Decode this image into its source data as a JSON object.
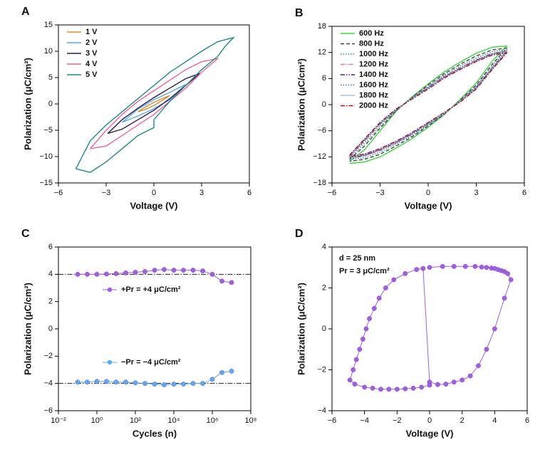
{
  "chart_data": [
    {
      "type": "line",
      "label": "A",
      "x_label": "Voltage (V)",
      "y_label": "Polarization (μC/cm²)",
      "xlim": [
        -6,
        6
      ],
      "xticks": [
        {
          "value": -6,
          "label": "−6"
        },
        {
          "value": -3,
          "label": "−3"
        },
        0,
        3,
        6
      ],
      "ylim": [
        -15,
        15
      ],
      "yticks": [
        {
          "value": -15,
          "label": "−15"
        },
        {
          "value": -10,
          "label": "−10"
        },
        {
          "value": -5,
          "label": "−5"
        },
        0,
        5,
        10,
        15
      ],
      "legend": "upper left",
      "series": [
        {
          "name": "1 V",
          "color": "#e08a2e",
          "x": [
            -1,
            -0.5,
            0,
            0.5,
            1,
            0.5,
            0,
            -0.5,
            -1
          ],
          "values": [
            -1.5,
            -0.5,
            0.3,
            1.0,
            1.6,
            0.6,
            -0.3,
            -1.0,
            -1.5
          ]
        },
        {
          "name": "2 V",
          "color": "#5aaae6",
          "x": [
            -2,
            -1,
            0,
            1,
            2,
            1,
            0,
            -1,
            -2
          ],
          "values": [
            -3.5,
            -1,
            0.8,
            2.2,
            3.7,
            0.8,
            -0.9,
            -2.3,
            -3.5
          ]
        },
        {
          "name": "3 V",
          "color": "#2d1a5c",
          "x": [
            -2.9,
            -2,
            -1,
            0,
            1,
            2,
            2.9,
            2,
            1,
            0,
            -1,
            -2,
            -2.9
          ],
          "values": [
            -5.6,
            -3,
            -0.8,
            1.2,
            3,
            4.8,
            5.8,
            3.5,
            1,
            -1.2,
            -3,
            -4.8,
            -5.6
          ]
        },
        {
          "name": "4 V",
          "color": "#f0609e",
          "x": [
            -4,
            -3,
            -2,
            -1,
            0,
            1,
            2,
            3,
            4,
            3,
            2,
            1,
            0,
            -1,
            -2,
            -3,
            -4
          ],
          "values": [
            -8.5,
            -5,
            -2,
            0.5,
            2.5,
            4.5,
            6.5,
            8,
            8.6,
            6,
            3,
            0.5,
            -2,
            -4,
            -6,
            -8,
            -8.5
          ]
        },
        {
          "name": "5 V",
          "color": "#1f8a8a",
          "x": [
            -4.9,
            -4,
            -3,
            -2,
            -1,
            0,
            1,
            2,
            3,
            4,
            5,
            4.5,
            4,
            3,
            2,
            1,
            0,
            0,
            -1,
            -2,
            -3,
            -4,
            -4.9
          ],
          "values": [
            -12.3,
            -7,
            -4,
            -1.5,
            1,
            3.5,
            6,
            8,
            10,
            11.8,
            12.6,
            11,
            9,
            6.5,
            3.5,
            0.5,
            -3,
            -4.5,
            -6,
            -8.5,
            -11,
            -13,
            -12.3
          ]
        }
      ]
    },
    {
      "type": "line",
      "label": "B",
      "x_label": "Voltage (V)",
      "y_label": "Polarization (μC/cm²)",
      "xlim": [
        -6,
        6
      ],
      "xticks": [
        {
          "value": -6,
          "label": "−6"
        },
        {
          "value": -3,
          "label": "−3"
        },
        0,
        3,
        6
      ],
      "ylim": [
        -18,
        18
      ],
      "yticks": [
        {
          "value": -18,
          "label": "−18"
        },
        {
          "value": -12,
          "label": "−12"
        },
        {
          "value": -6,
          "label": "−6"
        },
        0,
        6,
        12,
        18
      ],
      "legend": "upper left",
      "x": [
        -4.9,
        -4,
        -3,
        -2,
        -1,
        0,
        1,
        2,
        3,
        4,
        4.9,
        4,
        3,
        2,
        1,
        0,
        -1,
        -2,
        -3,
        -4,
        -4.9
      ],
      "series": [
        {
          "name": "600 Hz",
          "color": "#3fd23f",
          "dash": "solid",
          "values": [
            -13,
            -10.5,
            -6,
            -1.5,
            1.8,
            4.8,
            7.5,
            9.8,
            11.8,
            13.2,
            13.5,
            10,
            5,
            1.2,
            -2.3,
            -5.2,
            -7.8,
            -10,
            -12,
            -13.2,
            -13.5
          ]
        },
        {
          "name": "800 Hz",
          "color": "#444444",
          "dash": "dashed",
          "values": [
            -12.6,
            -9.6,
            -5.4,
            -1.4,
            1.7,
            4.5,
            7.1,
            9.3,
            11.2,
            12.6,
            13,
            9.3,
            4.5,
            1,
            -2.2,
            -4.9,
            -7.4,
            -9.5,
            -11.4,
            -12.6,
            -13
          ]
        },
        {
          "name": "1000 Hz",
          "color": "#1a9a9a",
          "dash": "dotted",
          "values": [
            -12.3,
            -9,
            -5,
            -1.3,
            1.6,
            4.2,
            6.8,
            8.9,
            10.7,
            12.2,
            12.6,
            8.9,
            4.2,
            0.9,
            -2.1,
            -4.7,
            -7.1,
            -9.1,
            -10.9,
            -12.2,
            -12.6
          ]
        },
        {
          "name": "1200 Hz",
          "color": "#f07090",
          "dash": "dashdot",
          "values": [
            -12,
            -8.5,
            -4.5,
            -1.2,
            1.5,
            4,
            6.5,
            8.5,
            10.3,
            11.8,
            12.3,
            8.5,
            4,
            0.8,
            -2,
            -4.5,
            -6.8,
            -8.8,
            -10.5,
            -11.8,
            -12.3
          ]
        },
        {
          "name": "1400 Hz",
          "color": "#4b1a8a",
          "dash": "dashdotdot",
          "values": [
            -11.9,
            -8.3,
            -4.4,
            -1.2,
            1.5,
            3.9,
            6.4,
            8.4,
            10.2,
            11.7,
            12.2,
            8.4,
            3.9,
            0.8,
            -2,
            -4.4,
            -6.7,
            -8.7,
            -10.4,
            -11.7,
            -12.2
          ]
        },
        {
          "name": "1600 Hz",
          "color": "#2a6ad0",
          "dash": "dotted",
          "values": [
            -11.8,
            -8.2,
            -4.3,
            -1.1,
            1.4,
            3.8,
            6.3,
            8.3,
            10.1,
            11.6,
            12.1,
            8.3,
            3.8,
            0.7,
            -1.9,
            -4.3,
            -6.6,
            -8.6,
            -10.3,
            -11.6,
            -12.1
          ]
        },
        {
          "name": "1800 Hz",
          "color": "#90c8ee",
          "dash": "solid",
          "values": [
            -11.7,
            -8.1,
            -4.2,
            -1.1,
            1.4,
            3.7,
            6.2,
            8.2,
            10,
            11.5,
            12,
            8.2,
            3.7,
            0.7,
            -1.9,
            -4.2,
            -6.5,
            -8.5,
            -10.2,
            -11.5,
            -12
          ]
        },
        {
          "name": "2000 Hz",
          "color": "#a01010",
          "dash": "dashdot",
          "values": [
            -11.6,
            -8,
            -4.1,
            -1,
            1.3,
            3.6,
            6.1,
            8.1,
            9.9,
            11.4,
            11.9,
            8.1,
            3.6,
            0.6,
            -1.8,
            -4.1,
            -6.4,
            -8.4,
            -10.1,
            -11.4,
            -11.9
          ]
        }
      ]
    },
    {
      "type": "line",
      "label": "C",
      "x_label": "Cycles (n)",
      "y_label": "Polarization (μC/cm²)",
      "xscale": "log",
      "xlim": [
        0.01,
        100000000
      ],
      "xticks": [
        {
          "value": 0.01,
          "label": "10⁻²"
        },
        {
          "value": 1,
          "label": "10⁰"
        },
        {
          "value": 100,
          "label": "10²"
        },
        {
          "value": 10000,
          "label": "10⁴"
        },
        {
          "value": 1000000,
          "label": "10⁶"
        },
        {
          "value": 100000000,
          "label": "10⁸"
        }
      ],
      "ylim": [
        -6,
        6
      ],
      "yticks": [
        {
          "value": -6,
          "label": "−6"
        },
        {
          "value": -4,
          "label": "−4"
        },
        {
          "value": -2,
          "label": "−2"
        },
        0,
        2,
        4,
        6
      ],
      "marker": "circle",
      "legend": "inline",
      "ref_lines": [
        4,
        -4
      ],
      "x": [
        0.1,
        0.316,
        1,
        3.16,
        10,
        31.6,
        100,
        316,
        1000,
        3162,
        10000,
        31623,
        100000,
        316228,
        1000000,
        3162278,
        10000000
      ],
      "series": [
        {
          "name": "+Pr = +4 μC/cm²",
          "color": "#a25ee0",
          "values": [
            4,
            4,
            4,
            4.02,
            4.05,
            4.1,
            4.15,
            4.2,
            4.3,
            4.35,
            4.3,
            4.3,
            4.3,
            4.25,
            4.0,
            3.5,
            3.4
          ]
        },
        {
          "name": "−Pr = −4 μC/cm²",
          "color": "#5aacee",
          "values": [
            -3.9,
            -3.9,
            -3.85,
            -3.85,
            -3.9,
            -3.9,
            -3.95,
            -4,
            -4.05,
            -4.1,
            -4.05,
            -4.05,
            -4,
            -4,
            -3.7,
            -3.2,
            -3.1
          ]
        }
      ]
    },
    {
      "type": "line",
      "label": "D",
      "x_label": "Voltage (V)",
      "y_label": "Polarization (μC/cm²)",
      "xlim": [
        -6,
        6
      ],
      "xticks": [
        {
          "value": -6,
          "label": "−6"
        },
        {
          "value": -4,
          "label": "−4"
        },
        {
          "value": -2,
          "label": "−2"
        },
        0,
        2,
        4,
        6
      ],
      "ylim": [
        -4,
        4
      ],
      "yticks": [
        {
          "value": -4,
          "label": "−4"
        },
        {
          "value": -2,
          "label": "−2"
        },
        0,
        2,
        4
      ],
      "marker": "circle",
      "annotations": [
        "d = 25 nm",
        "Pr = 3 μC/cm²"
      ],
      "series": [
        {
          "color": "#a25ee0",
          "x": [
            0,
            0.8,
            1.5,
            2.2,
            2.8,
            3.2,
            3.5,
            3.8,
            4,
            4.2,
            4.4,
            4.6,
            4.8,
            5,
            4.6,
            4,
            3.5,
            3,
            2.5,
            2,
            1.5,
            1,
            0.5,
            0,
            -0.4,
            -0.8,
            -1.5,
            -2.2,
            -2.7,
            -3.1,
            -3.4,
            -3.7,
            -3.9,
            -4.1,
            -4.3,
            -4.5,
            -4.7,
            -4.9,
            -4.6,
            -4,
            -3.5,
            -3,
            -2.5,
            -2,
            -1.5,
            -1,
            -0.5,
            0
          ],
          "values": [
            3,
            3.05,
            3.05,
            3.05,
            3.05,
            3.02,
            3,
            2.97,
            2.95,
            2.9,
            2.85,
            2.8,
            2.7,
            2.4,
            1.5,
            0,
            -1,
            -1.8,
            -2.3,
            -2.5,
            -2.6,
            -2.7,
            -2.72,
            -2.6,
            2.95,
            2.9,
            2.7,
            2.4,
            2,
            1.5,
            1,
            0.5,
            0,
            -0.5,
            -1,
            -1.5,
            -2,
            -2.5,
            -2.7,
            -2.85,
            -2.9,
            -2.95,
            -2.95,
            -2.95,
            -2.93,
            -2.9,
            -2.85,
            -2.75
          ]
        }
      ]
    }
  ]
}
